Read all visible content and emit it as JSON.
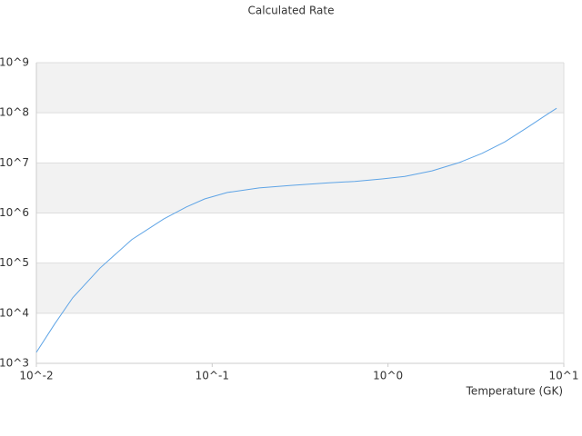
{
  "chart_data": {
    "type": "line",
    "title": "Calculated Rate",
    "x_label": "Temperature (GK)",
    "x": [
      0.01,
      0.01268,
      0.0161,
      0.023,
      0.0349,
      0.053,
      0.0714,
      0.0906,
      0.122,
      0.185,
      0.281,
      0.452,
      0.647,
      0.925,
      1.245,
      1.78,
      2.55,
      3.43,
      4.62,
      6.22,
      7.89,
      9.1
    ],
    "series": [
      {
        "name": "Calculated Rate",
        "color": "#5ea4e6",
        "values": [
          1660,
          6030,
          20400,
          79400,
          295000,
          759000,
          1320000,
          1910000,
          2570000,
          3160000,
          3550000,
          3980000,
          4270000,
          4790000,
          5370000,
          6920000,
          10200000,
          15500000,
          26300000,
          51300000,
          89100000,
          123000000
        ]
      }
    ],
    "xlim": [
      0.01,
      10
    ],
    "ylim": [
      1000,
      1000000000
    ],
    "xticks": [
      {
        "value": 0.01,
        "label": "10^-2"
      },
      {
        "value": 0.1,
        "label": "10^-1"
      },
      {
        "value": 1,
        "label": "10^0"
      },
      {
        "value": 10,
        "label": "10^1"
      }
    ],
    "yticks": [
      {
        "value": 1000,
        "label": "10^3"
      },
      {
        "value": 10000,
        "label": "10^4"
      },
      {
        "value": 100000,
        "label": "10^5"
      },
      {
        "value": 1000000,
        "label": "10^6"
      },
      {
        "value": 10000000,
        "label": "10^7"
      },
      {
        "value": 100000000,
        "label": "10^8"
      },
      {
        "value": 1000000000,
        "label": "10^9"
      }
    ],
    "x_log": true,
    "y_log": true,
    "grid": true,
    "band_color": "#f2f2f2"
  }
}
